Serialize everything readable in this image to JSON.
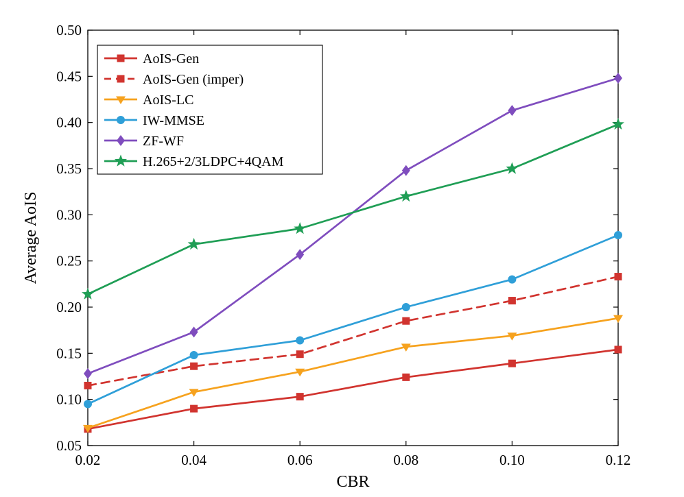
{
  "figure": {
    "background": "#ffffff",
    "axis_color": "#000000"
  },
  "chart_data": {
    "type": "line",
    "title": "",
    "xlabel": "CBR",
    "ylabel": "Average AoIS",
    "xlim": [
      0.02,
      0.12
    ],
    "ylim": [
      0.05,
      0.5
    ],
    "xticks": [
      0.02,
      0.04,
      0.06,
      0.08,
      0.1,
      0.12
    ],
    "yticks": [
      0.05,
      0.1,
      0.15,
      0.2,
      0.25,
      0.3,
      0.35,
      0.4,
      0.45,
      0.5
    ],
    "grid": false,
    "legend_position": "top-left",
    "x": [
      0.02,
      0.04,
      0.06,
      0.08,
      0.1,
      0.12
    ],
    "series": [
      {
        "name": "AoIS-Gen",
        "color": "#d1342f",
        "line": "solid",
        "marker": "square",
        "values": [
          0.068,
          0.09,
          0.103,
          0.124,
          0.139,
          0.154
        ]
      },
      {
        "name": "AoIS-Gen (imper)",
        "color": "#d1342f",
        "line": "dashed",
        "marker": "square",
        "values": [
          0.115,
          0.136,
          0.149,
          0.185,
          0.207,
          0.233
        ]
      },
      {
        "name": "AoIS-LC",
        "color": "#f6a21e",
        "line": "solid",
        "marker": "triangle-down",
        "values": [
          0.069,
          0.108,
          0.13,
          0.157,
          0.169,
          0.188
        ]
      },
      {
        "name": "IW-MMSE",
        "color": "#2f9fd8",
        "line": "solid",
        "marker": "circle",
        "values": [
          0.095,
          0.148,
          0.164,
          0.2,
          0.23,
          0.278
        ]
      },
      {
        "name": "ZF-WF",
        "color": "#7f4dbe",
        "line": "solid",
        "marker": "diamond",
        "values": [
          0.128,
          0.173,
          0.257,
          0.348,
          0.413,
          0.448
        ]
      },
      {
        "name": "H.265+2/3LDPC+4QAM",
        "color": "#1f9e55",
        "line": "solid",
        "marker": "star",
        "values": [
          0.214,
          0.268,
          0.285,
          0.32,
          0.35,
          0.398
        ]
      }
    ]
  }
}
